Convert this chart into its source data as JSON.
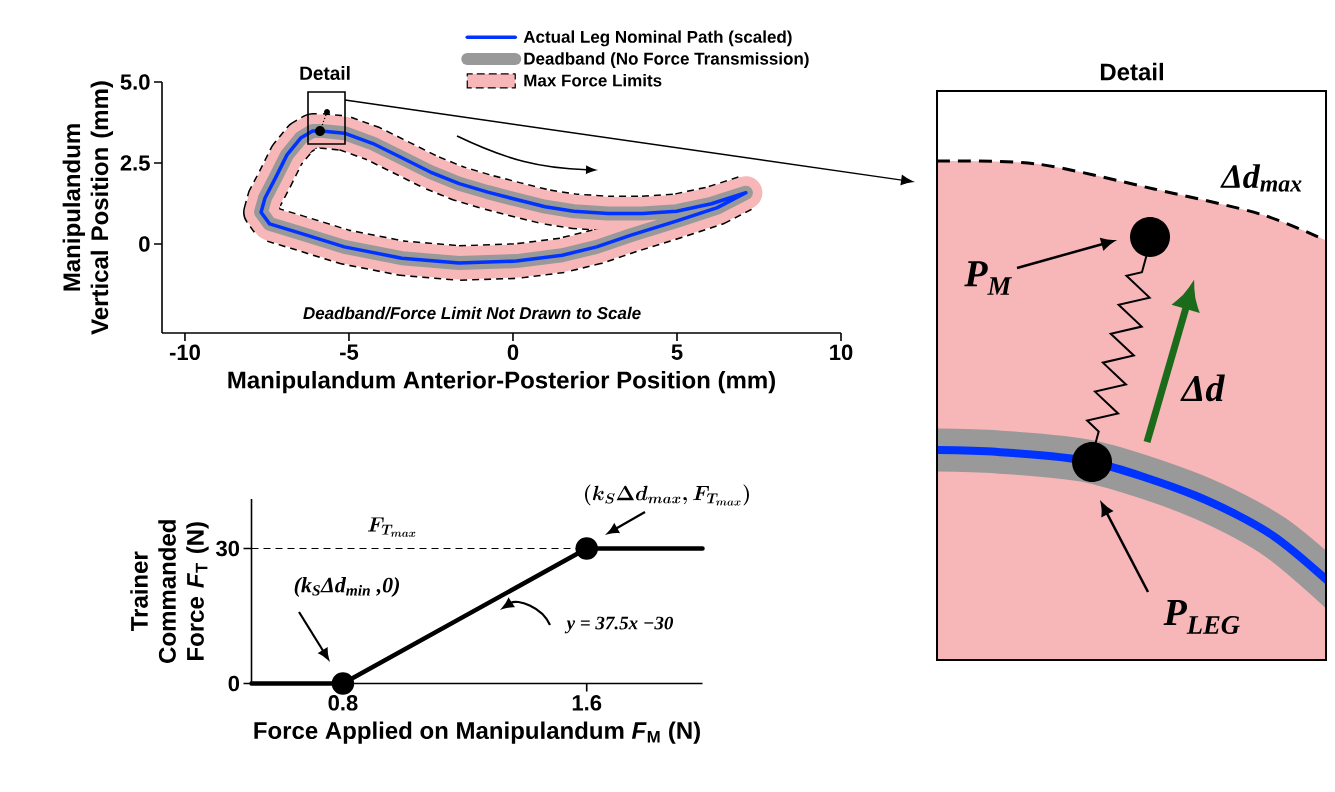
{
  "chart_data": [
    {
      "type": "line",
      "xlabel": "Manipulandum Anterior-Posterior Position (mm)",
      "ylabel": "Manipulandum Vertical Position (mm)",
      "xlim": [
        -10.7,
        10
      ],
      "ylim": [
        -2.75,
        5
      ],
      "xticks": [
        -10,
        -5,
        0,
        5,
        10
      ],
      "yticks": [
        0,
        2.5,
        {
          "value": 5,
          "label": "5.0"
        }
      ],
      "legend": "top",
      "series": [
        {
          "name": "Actual Leg Nominal Path (scaled)",
          "color": "#0033ff",
          "x": [
            -5.84,
            -5.14,
            -4.27,
            -3.39,
            -2.52,
            -1.64,
            -0.77,
            0.1,
            0.98,
            1.85,
            2.9,
            3.95,
            4.99,
            6.05,
            7.1,
            6.23,
            5.0,
            3.6,
            2.55,
            1.5,
            0.1,
            -1.64,
            -3.39,
            -5.14,
            -6.54,
            -7.42,
            -7.68,
            -7.56,
            -7.24,
            -6.89,
            -6.46,
            -6.11,
            -5.9
          ],
          "values": [
            3.49,
            3.42,
            3.1,
            2.66,
            2.22,
            1.86,
            1.6,
            1.37,
            1.15,
            1.01,
            0.94,
            0.94,
            1.01,
            1.24,
            1.58,
            1.12,
            0.71,
            0.27,
            -0.09,
            -0.35,
            -0.53,
            -0.59,
            -0.44,
            -0.09,
            0.35,
            0.62,
            0.98,
            1.42,
            2.04,
            2.75,
            3.28,
            3.49,
            3.49
          ]
        },
        {
          "name": "Deadband (No Force Transmission)",
          "color": "#999999",
          "x": [
            -5.84,
            -5.14,
            -4.27,
            -3.39,
            -2.52,
            -1.64,
            -0.77,
            0.1,
            0.98,
            1.85,
            2.9,
            3.95,
            4.99,
            6.05,
            7.1,
            6.23,
            5.0,
            3.6,
            2.55,
            1.5,
            0.1,
            -1.64,
            -3.39,
            -5.14,
            -6.54,
            -7.42,
            -7.68,
            -7.56,
            -7.24,
            -6.89,
            -6.46,
            -6.11,
            -5.9
          ],
          "values": [
            3.49,
            3.42,
            3.1,
            2.66,
            2.22,
            1.86,
            1.6,
            1.37,
            1.15,
            1.01,
            0.94,
            0.94,
            1.01,
            1.24,
            1.58,
            1.12,
            0.71,
            0.27,
            -0.09,
            -0.35,
            -0.53,
            -0.59,
            -0.44,
            -0.09,
            0.35,
            0.62,
            0.98,
            1.42,
            2.04,
            2.75,
            3.28,
            3.49,
            3.49
          ]
        },
        {
          "name": "Max Force Limits",
          "color": "#f7b6b8",
          "x": [
            -5.84,
            -5.14,
            -4.27,
            -3.39,
            -2.52,
            -1.64,
            -0.77,
            0.1,
            0.98,
            1.85,
            2.9,
            3.95,
            4.99,
            6.05,
            7.1,
            6.23,
            5.0,
            3.6,
            2.55,
            1.5,
            0.1,
            -1.64,
            -3.39,
            -5.14,
            -6.54,
            -7.42,
            -7.68,
            -7.56,
            -7.24,
            -6.89,
            -6.46,
            -6.11,
            -5.9
          ],
          "values": [
            3.49,
            3.42,
            3.1,
            2.66,
            2.22,
            1.86,
            1.6,
            1.37,
            1.15,
            1.01,
            0.94,
            0.94,
            1.01,
            1.24,
            1.58,
            1.12,
            0.71,
            0.27,
            -0.09,
            -0.35,
            -0.53,
            -0.59,
            -0.44,
            -0.09,
            0.35,
            0.62,
            0.98,
            1.42,
            2.04,
            2.75,
            3.28,
            3.49,
            3.49
          ]
        }
      ],
      "annotations": [
        "Detail",
        "Deadband/Force Limit Not Drawn to Scale"
      ]
    },
    {
      "type": "line",
      "xlabel": "Force Applied on Manipulandum *F*$_{M}$ (N)",
      "ylabel": "Trainer Commanded Force *F*$_{T}$ (N)",
      "xlim": [
        0.5,
        1.98
      ],
      "ylim": [
        0,
        41
      ],
      "xticks": [
        0.8,
        1.6
      ],
      "yticks": [
        0,
        30
      ],
      "series": [
        {
          "color": "#000000",
          "x": [
            0.5,
            0.8,
            1.6,
            1.98
          ],
          "values": [
            0,
            0,
            30,
            30
          ]
        },
        {
          "type": "scatter",
          "color": "#000000",
          "x": [
            0.8,
            1.6
          ],
          "values": [
            0,
            30
          ]
        }
      ],
      "ref_lines": [
        {
          "axis": "y",
          "value": 30,
          "label": "F_{T_{max}}",
          "line_style": "dashed",
          "color": "#000000"
        }
      ],
      "annotations": [
        "(k_S\\Delta d_{max},F_{T_{max}})",
        "(k$_{S}$Δd$_{min}$ ,0)",
        "y = 37.5x −30"
      ]
    },
    {
      "type": "other",
      "title": "Detail",
      "annotations": [
        "Δd$_{max}$",
        "P$_{M}$",
        "Δd",
        "P$_{LEG}$"
      ]
    }
  ]
}
